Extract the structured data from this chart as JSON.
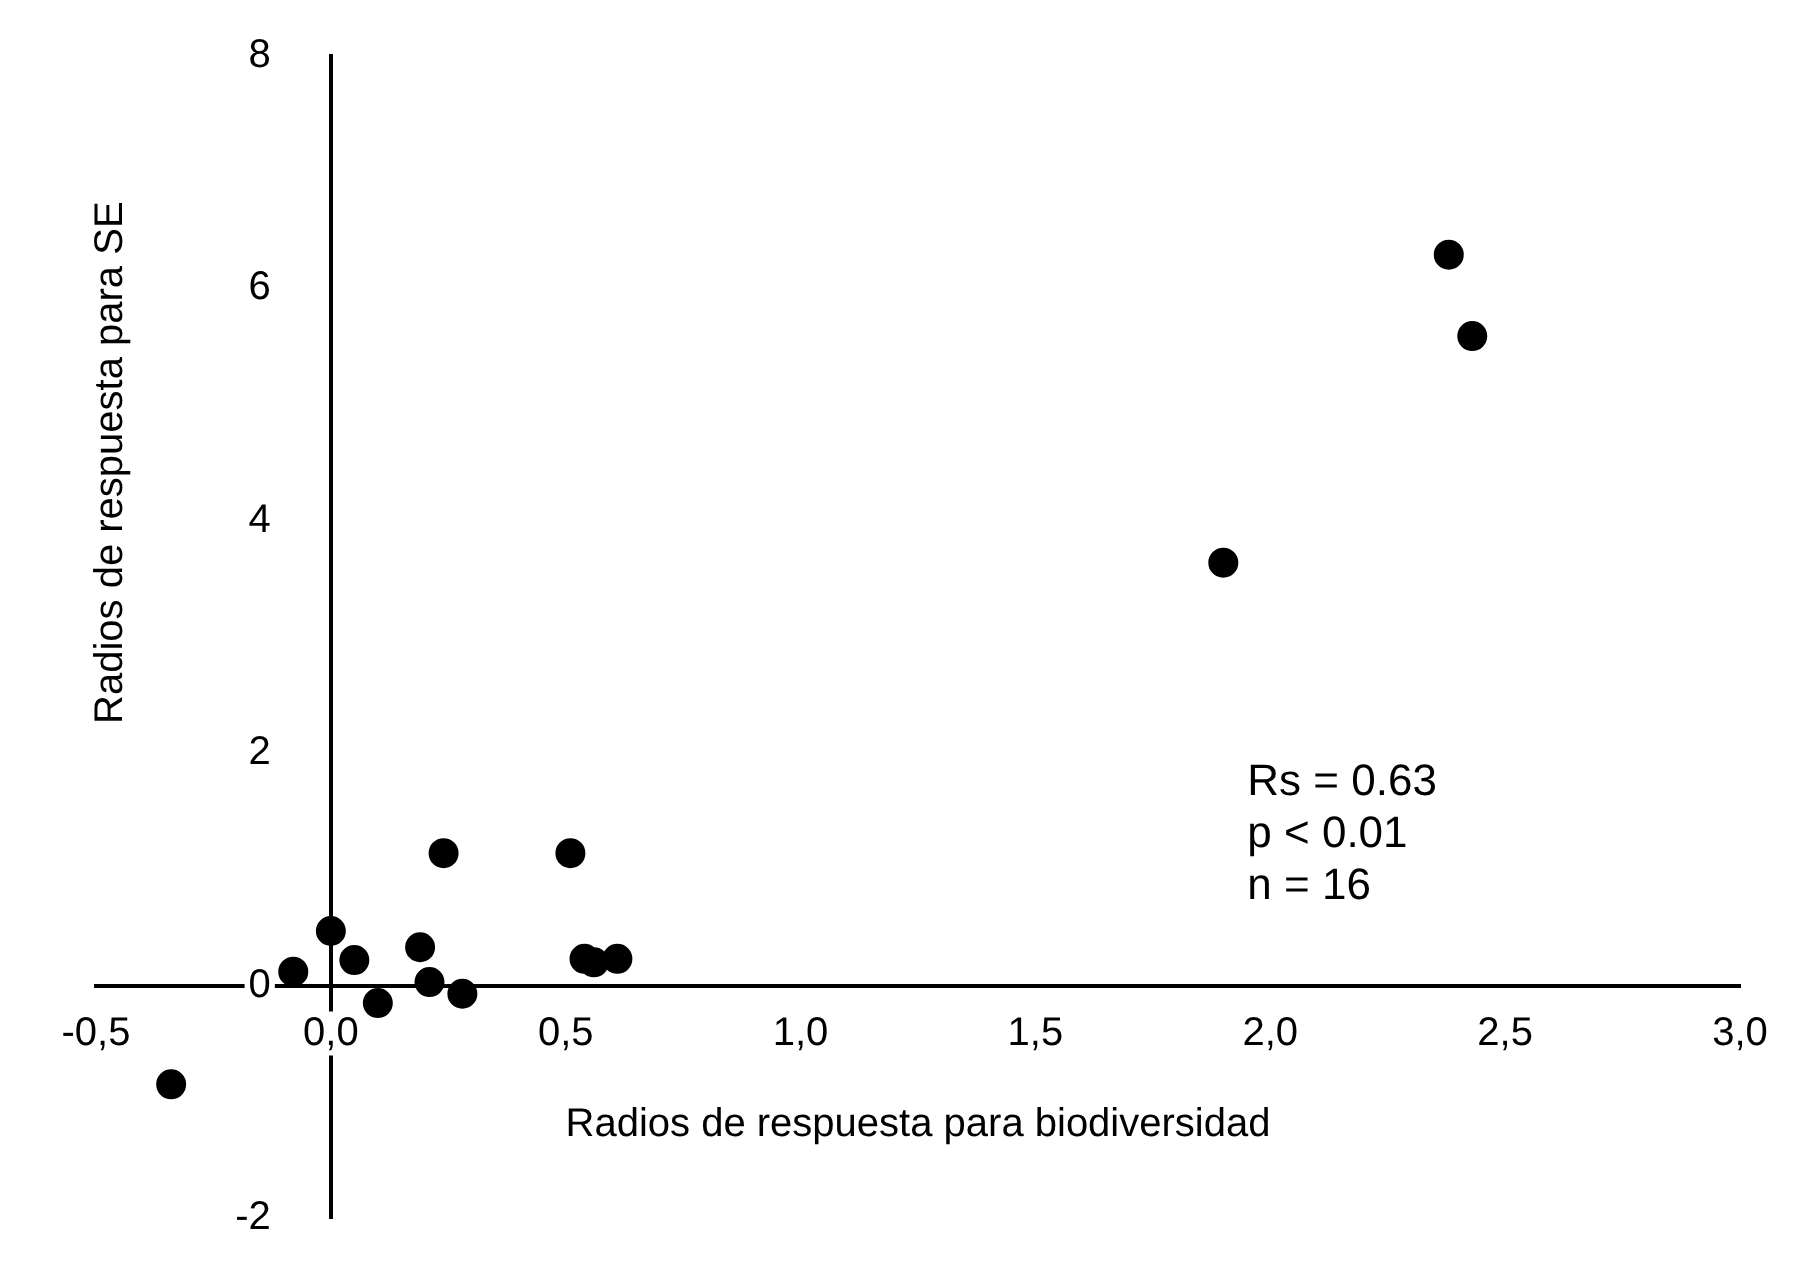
{
  "chart_data": {
    "type": "scatter",
    "xlabel": "Radios de respuesta para biodiversidad",
    "ylabel": "Radios de respuesta para SE",
    "x": [
      -0.34,
      -0.08,
      0.0,
      0.05,
      0.1,
      0.19,
      0.21,
      0.24,
      0.28,
      0.51,
      0.54,
      0.56,
      0.61,
      1.9,
      2.38,
      2.43
    ],
    "series": [
      {
        "color": "#000000",
        "values": [
          -0.85,
          0.12,
          0.47,
          0.22,
          -0.15,
          0.33,
          0.03,
          1.14,
          -0.07,
          1.14,
          0.23,
          0.2,
          0.23,
          3.64,
          6.29,
          5.59
        ]
      }
    ],
    "xlim": [
      -0.5,
      3.0
    ],
    "xticks": [
      {
        "value": -0.5,
        "label": "-0,5"
      },
      {
        "value": 0,
        "label": "0,0"
      },
      {
        "value": 0.5,
        "label": "0,5"
      },
      {
        "value": 1,
        "label": "1,0"
      },
      {
        "value": 1.5,
        "label": "1,5"
      },
      {
        "value": 2,
        "label": "2,0"
      },
      {
        "value": 2.5,
        "label": "2,5"
      },
      {
        "value": 3,
        "label": "3,0"
      }
    ],
    "ylim": [
      -2,
      8
    ],
    "yticks": [
      -2,
      0,
      2,
      4,
      6,
      8
    ],
    "annotations": [
      "Rs = 0.63",
      "p < 0.01",
      "n = 16"
    ],
    "grid": false,
    "legend": false,
    "marker": "circle"
  }
}
